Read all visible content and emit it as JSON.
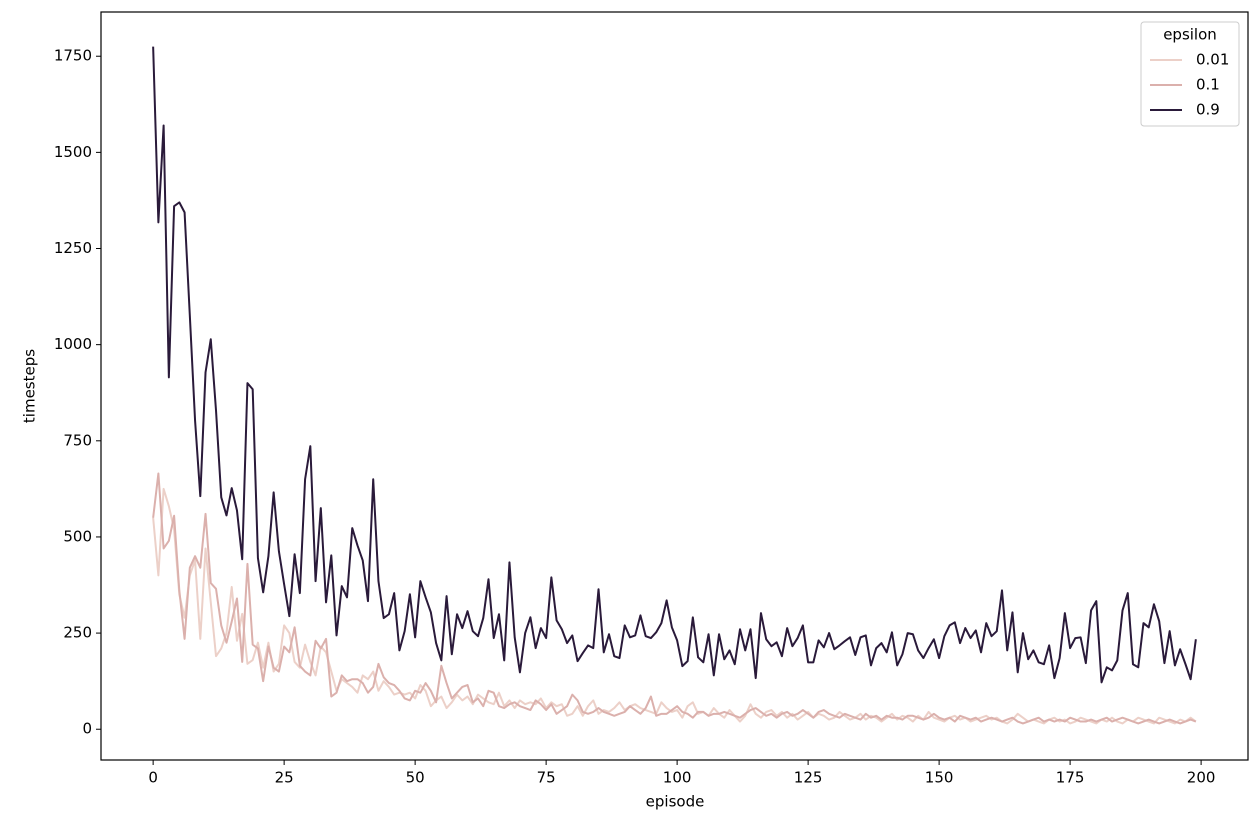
{
  "chart_data": {
    "type": "line",
    "x_label": "episode",
    "y_label": "timesteps",
    "legend_title": "epsilon",
    "legend": "upper right",
    "grid": false,
    "xlim": [
      -9.95,
      208.95
    ],
    "ylim": [
      -80,
      1865
    ],
    "xticks": [
      0,
      25,
      50,
      75,
      100,
      125,
      150,
      175,
      200
    ],
    "yticks": [
      0,
      250,
      500,
      750,
      1000,
      1250,
      1500,
      1750
    ],
    "x": [
      0,
      1,
      2,
      3,
      4,
      5,
      6,
      7,
      8,
      9,
      10,
      11,
      12,
      13,
      14,
      15,
      16,
      17,
      18,
      19,
      20,
      21,
      22,
      23,
      24,
      25,
      26,
      27,
      28,
      29,
      30,
      31,
      32,
      33,
      34,
      35,
      36,
      37,
      38,
      39,
      40,
      41,
      42,
      43,
      44,
      45,
      46,
      47,
      48,
      49,
      50,
      51,
      52,
      53,
      54,
      55,
      56,
      57,
      58,
      59,
      60,
      61,
      62,
      63,
      64,
      65,
      66,
      67,
      68,
      69,
      70,
      71,
      72,
      73,
      74,
      75,
      76,
      77,
      78,
      79,
      80,
      81,
      82,
      83,
      84,
      85,
      86,
      87,
      88,
      89,
      90,
      91,
      92,
      93,
      94,
      95,
      96,
      97,
      98,
      99,
      100,
      101,
      102,
      103,
      104,
      105,
      106,
      107,
      108,
      109,
      110,
      111,
      112,
      113,
      114,
      115,
      116,
      117,
      118,
      119,
      120,
      121,
      122,
      123,
      124,
      125,
      126,
      127,
      128,
      129,
      130,
      131,
      132,
      133,
      134,
      135,
      136,
      137,
      138,
      139,
      140,
      141,
      142,
      143,
      144,
      145,
      146,
      147,
      148,
      149,
      150,
      151,
      152,
      153,
      154,
      155,
      156,
      157,
      158,
      159,
      160,
      161,
      162,
      163,
      164,
      165,
      166,
      167,
      168,
      169,
      170,
      171,
      172,
      173,
      174,
      175,
      176,
      177,
      178,
      179,
      180,
      181,
      182,
      183,
      184,
      185,
      186,
      187,
      188,
      189,
      190,
      191,
      192,
      193,
      194,
      195,
      196,
      197,
      198,
      199
    ],
    "series": [
      {
        "name": "0.01",
        "color": "#ecd0c8",
        "values": [
          550,
          400,
          625,
          580,
          520,
          350,
          290,
          400,
          440,
          235,
          470,
          330,
          190,
          210,
          250,
          370,
          230,
          300,
          170,
          180,
          225,
          160,
          225,
          150,
          170,
          270,
          250,
          175,
          160,
          220,
          175,
          140,
          215,
          200,
          150,
          100,
          130,
          120,
          110,
          95,
          140,
          130,
          150,
          100,
          125,
          110,
          90,
          95,
          90,
          95,
          80,
          115,
          100,
          60,
          75,
          85,
          55,
          70,
          90,
          75,
          85,
          65,
          90,
          80,
          70,
          65,
          95,
          60,
          75,
          55,
          75,
          65,
          70,
          65,
          80,
          55,
          70,
          60,
          65,
          35,
          40,
          60,
          35,
          60,
          75,
          40,
          50,
          45,
          55,
          70,
          50,
          60,
          65,
          55,
          50,
          45,
          40,
          70,
          55,
          45,
          50,
          30,
          60,
          70,
          40,
          45,
          35,
          55,
          40,
          30,
          50,
          35,
          20,
          35,
          65,
          40,
          30,
          45,
          50,
          35,
          45,
          30,
          40,
          25,
          35,
          45,
          30,
          40,
          35,
          25,
          30,
          45,
          35,
          25,
          30,
          40,
          25,
          35,
          30,
          20,
          30,
          40,
          25,
          35,
          30,
          20,
          35,
          25,
          45,
          30,
          25,
          20,
          30,
          35,
          25,
          30,
          20,
          25,
          30,
          35,
          25,
          30,
          20,
          15,
          25,
          40,
          30,
          20,
          25,
          20,
          15,
          25,
          30,
          20,
          25,
          15,
          20,
          30,
          25,
          20,
          15,
          25,
          20,
          30,
          20,
          15,
          25,
          20,
          30,
          25,
          20,
          15,
          30,
          25,
          20,
          15,
          25,
          20,
          30,
          20
        ]
      },
      {
        "name": "0.1",
        "color": "#dbb0ac",
        "values": [
          550,
          665,
          470,
          490,
          555,
          360,
          235,
          420,
          450,
          420,
          560,
          380,
          365,
          270,
          225,
          280,
          340,
          175,
          430,
          220,
          210,
          125,
          215,
          160,
          150,
          215,
          200,
          265,
          165,
          150,
          140,
          230,
          210,
          235,
          85,
          95,
          140,
          125,
          130,
          130,
          120,
          95,
          110,
          170,
          135,
          120,
          115,
          100,
          80,
          75,
          100,
          95,
          120,
          100,
          70,
          165,
          120,
          80,
          95,
          110,
          115,
          70,
          80,
          60,
          100,
          95,
          60,
          55,
          65,
          70,
          60,
          55,
          50,
          75,
          65,
          50,
          65,
          40,
          50,
          60,
          90,
          75,
          45,
          40,
          45,
          55,
          45,
          40,
          35,
          40,
          45,
          60,
          50,
          40,
          55,
          85,
          35,
          40,
          40,
          50,
          60,
          45,
          40,
          30,
          45,
          45,
          35,
          40,
          40,
          45,
          40,
          35,
          30,
          40,
          50,
          55,
          45,
          35,
          40,
          30,
          40,
          45,
          35,
          40,
          50,
          40,
          30,
          45,
          50,
          40,
          35,
          30,
          40,
          35,
          30,
          25,
          40,
          30,
          35,
          25,
          35,
          30,
          30,
          25,
          35,
          35,
          30,
          25,
          30,
          40,
          30,
          25,
          30,
          20,
          35,
          30,
          25,
          30,
          20,
          25,
          30,
          25,
          20,
          25,
          30,
          20,
          15,
          20,
          25,
          30,
          20,
          25,
          20,
          25,
          20,
          30,
          25,
          20,
          20,
          25,
          20,
          25,
          30,
          20,
          25,
          30,
          25,
          20,
          15,
          20,
          25,
          20,
          15,
          20,
          25,
          20,
          15,
          20,
          25,
          20
        ]
      },
      {
        "name": "0.9",
        "color": "#2a1a3a",
        "values": [
          1775,
          1318,
          1570,
          915,
          1360,
          1370,
          1344,
          1076,
          803,
          606,
          928,
          1014,
          829,
          603,
          556,
          627,
          569,
          442,
          900,
          884,
          445,
          356,
          450,
          616,
          463,
          377,
          294,
          455,
          354,
          650,
          736,
          385,
          575,
          330,
          452,
          244,
          372,
          343,
          523,
          478,
          439,
          333,
          650,
          385,
          289,
          299,
          354,
          205,
          255,
          351,
          239,
          385,
          343,
          304,
          224,
          179,
          346,
          195,
          299,
          263,
          307,
          255,
          242,
          289,
          390,
          237,
          299,
          179,
          434,
          239,
          148,
          250,
          291,
          211,
          263,
          237,
          395,
          283,
          260,
          224,
          244,
          177,
          198,
          218,
          211,
          364,
          200,
          247,
          190,
          185,
          270,
          239,
          244,
          296,
          242,
          237,
          252,
          276,
          335,
          265,
          231,
          164,
          177,
          291,
          187,
          174,
          247,
          140,
          247,
          182,
          205,
          169,
          260,
          205,
          260,
          133,
          302,
          234,
          216,
          226,
          190,
          263,
          216,
          237,
          270,
          174,
          174,
          231,
          213,
          250,
          208,
          218,
          229,
          239,
          193,
          239,
          244,
          166,
          211,
          224,
          200,
          252,
          166,
          195,
          250,
          247,
          205,
          185,
          211,
          234,
          185,
          242,
          270,
          278,
          224,
          263,
          237,
          257,
          200,
          276,
          242,
          255,
          361,
          205,
          304,
          148,
          250,
          182,
          205,
          174,
          169,
          218,
          133,
          185,
          302,
          211,
          237,
          239,
          172,
          309,
          333,
          122,
          161,
          153,
          179,
          309,
          354,
          169,
          161,
          276,
          265,
          325,
          281,
          172,
          255,
          166,
          208,
          170,
          130,
          234
        ]
      }
    ]
  }
}
